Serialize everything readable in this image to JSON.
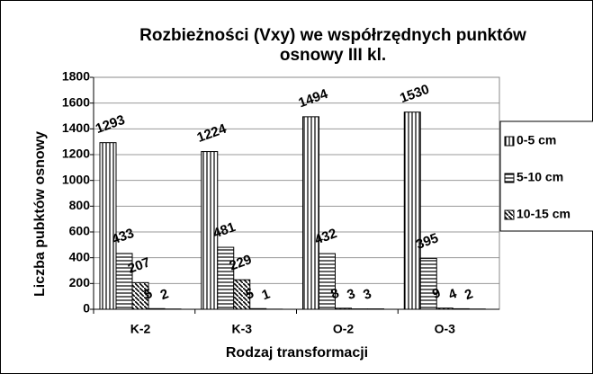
{
  "chart_data": {
    "type": "bar",
    "title": "Rozbieżności (Vxy) we współrzędnych punktów osnowy III kl.",
    "x_label": "Rodzaj transformacji",
    "y_label": "Liczba pubktów osnowy",
    "categories": [
      "K-2",
      "K-3",
      "O-2",
      "O-3"
    ],
    "series": [
      {
        "name": "0-5 cm",
        "color": "#000000",
        "pattern": "vertical",
        "values": [
          1293,
          1224,
          1494,
          1530
        ]
      },
      {
        "name": "5-10 cm",
        "color": "#000000",
        "pattern": "horizontal",
        "values": [
          433,
          481,
          432,
          395
        ]
      },
      {
        "name": "10-15 cm",
        "color": "#000000",
        "pattern": "diagonal",
        "values": [
          207,
          229,
          8,
          9
        ]
      },
      {
        "color": "#000000",
        "pattern": "dots",
        "values": [
          5,
          5,
          3,
          4
        ]
      },
      {
        "color": "#000000",
        "pattern": "solid",
        "values": [
          2,
          1,
          3,
          2
        ]
      }
    ],
    "ylim": [
      0,
      1800
    ],
    "yticks": [
      0,
      200,
      400,
      600,
      800,
      1000,
      1200,
      1400,
      1600,
      1800
    ],
    "grid": true,
    "legend": "right"
  }
}
